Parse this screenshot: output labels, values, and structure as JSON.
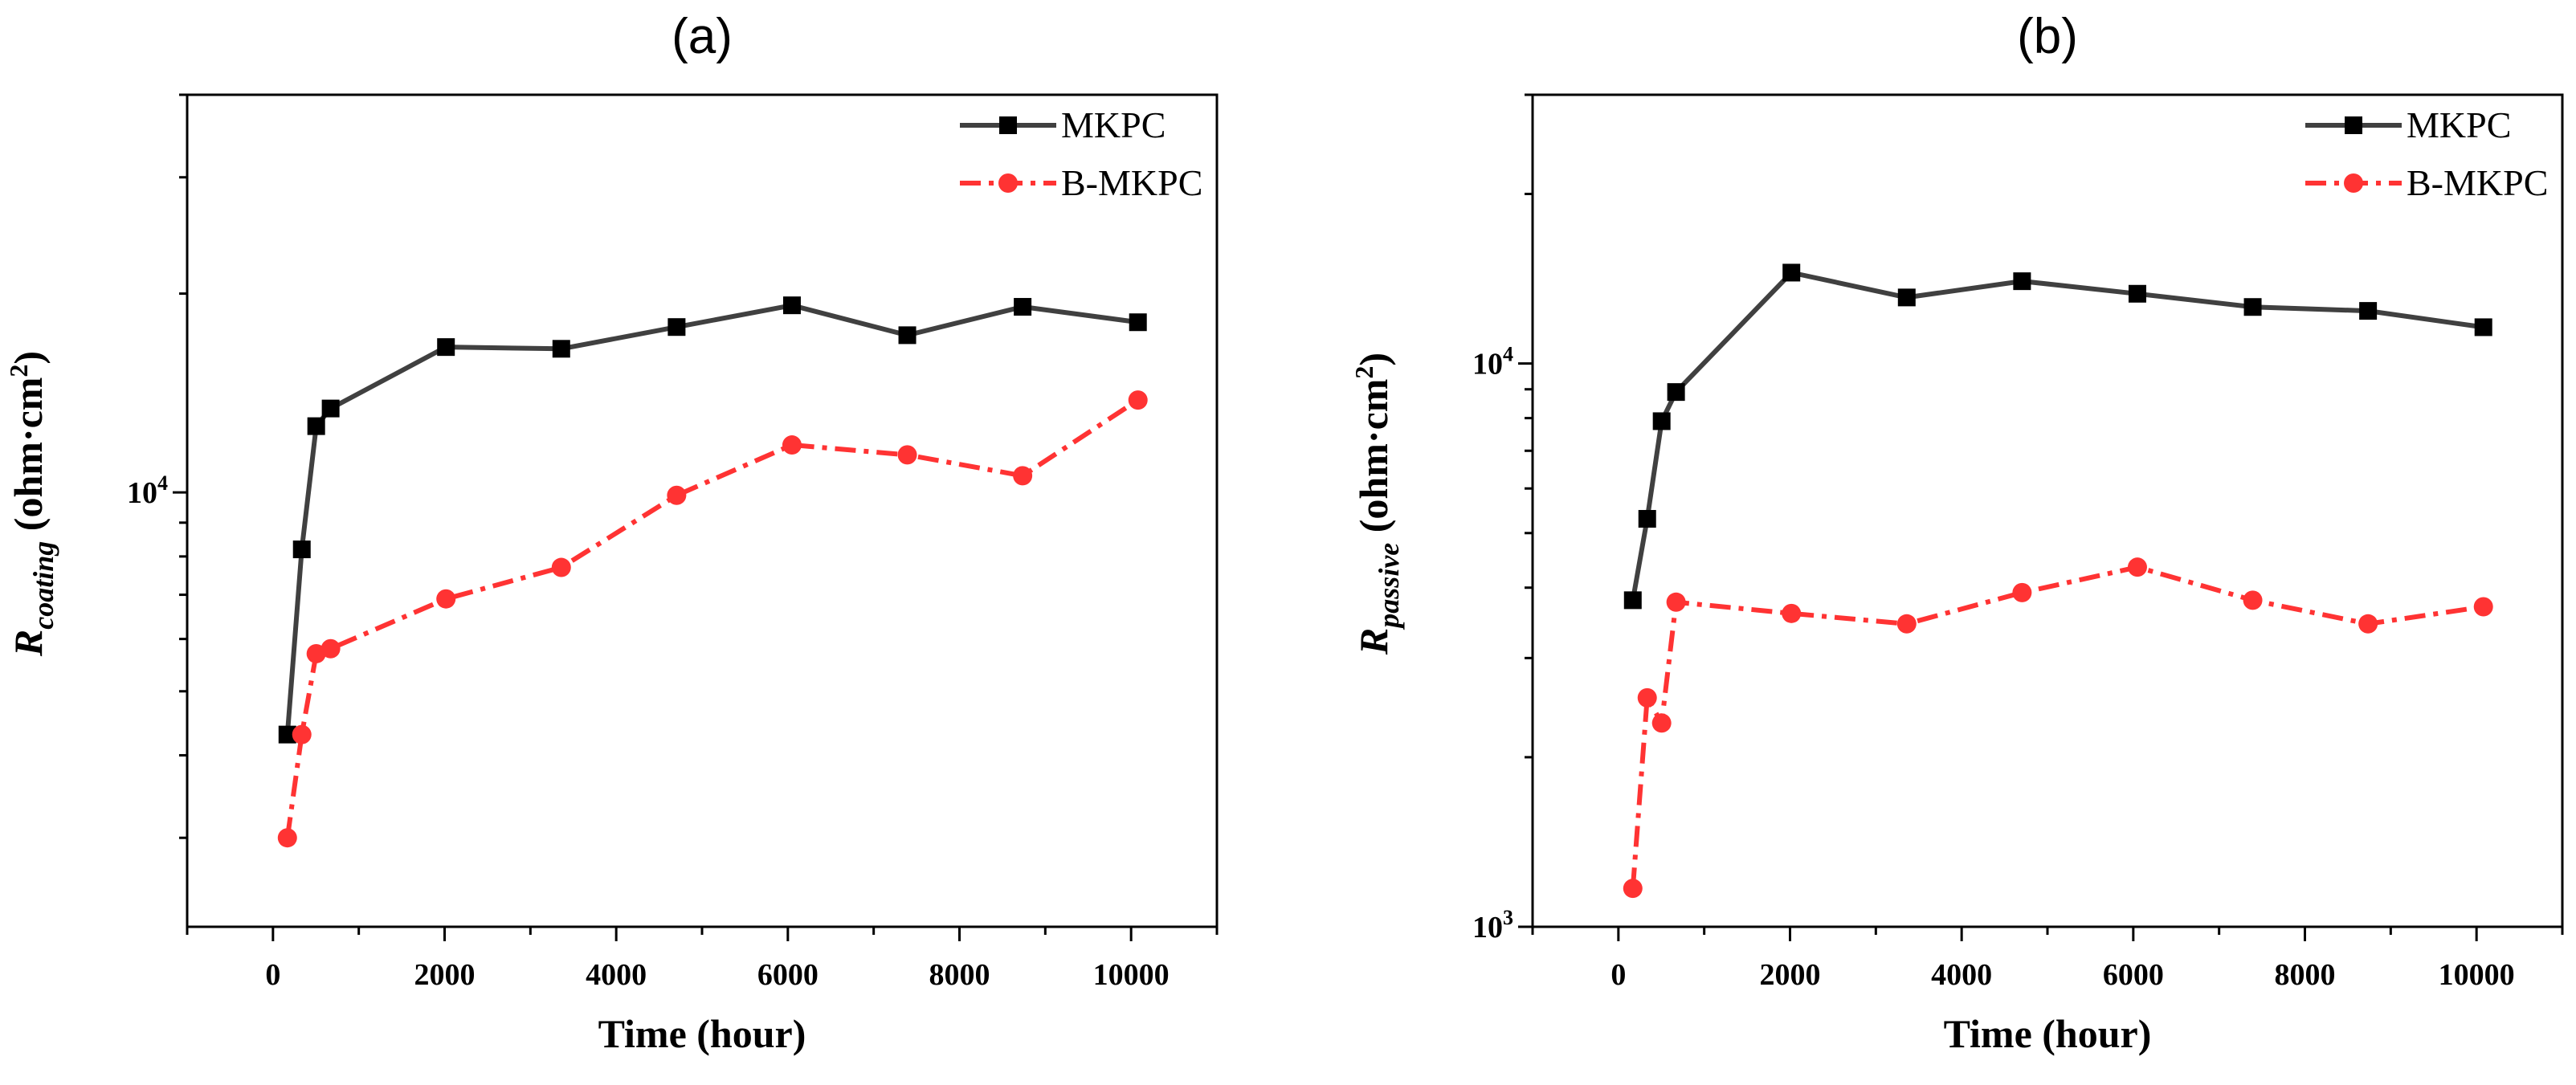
{
  "chart_data": [
    {
      "type": "line",
      "title": "(a)",
      "xlabel": "Time (hour)",
      "ylabel": {
        "base": "R",
        "sub": "coating",
        "rest": " (ohm·cm",
        "sup": "2",
        "close": ")"
      },
      "xlim": [
        -1000,
        11000
      ],
      "ylim": [
        2200,
        40000
      ],
      "yscale": "log",
      "x_ticks": [
        0,
        2000,
        4000,
        6000,
        8000,
        10000
      ],
      "x_tick_labels": [
        "0",
        "2000",
        "4000",
        "6000",
        "8000",
        "10000"
      ],
      "y_labeled_ticks": [
        {
          "value": 10000,
          "base": "10",
          "exp": "4"
        }
      ],
      "legend_position": "top-right",
      "series": [
        {
          "name": "MKPC",
          "color": "#404040",
          "marker": "square",
          "line_style": "solid",
          "x": [
            168,
            336,
            504,
            672,
            2016,
            3360,
            4704,
            6048,
            7392,
            8736,
            10080
          ],
          "y": [
            4300,
            8200,
            12600,
            13400,
            16600,
            16500,
            17800,
            19200,
            17300,
            19100,
            18100
          ]
        },
        {
          "name": "B-MKPC",
          "color": "#ff3333",
          "marker": "circle",
          "line_style": "dash-dot",
          "x": [
            168,
            336,
            504,
            672,
            2016,
            3360,
            4704,
            6048,
            7392,
            8736,
            10080
          ],
          "y": [
            3000,
            4300,
            5700,
            5800,
            6900,
            7700,
            9900,
            11800,
            11400,
            10600,
            13800
          ]
        }
      ]
    },
    {
      "type": "line",
      "title": "(b)",
      "xlabel": "Time (hour)",
      "ylabel": {
        "base": "R",
        "sub": "passive",
        "rest": " (ohm·cm",
        "sup": "2",
        "close": ")"
      },
      "xlim": [
        -1000,
        11000
      ],
      "ylim": [
        1000,
        30000
      ],
      "yscale": "log",
      "x_ticks": [
        0,
        2000,
        4000,
        6000,
        8000,
        10000
      ],
      "x_tick_labels": [
        "0",
        "2000",
        "4000",
        "6000",
        "8000",
        "10000"
      ],
      "y_labeled_ticks": [
        {
          "value": 1000,
          "base": "10",
          "exp": "3"
        },
        {
          "value": 10000,
          "base": "10",
          "exp": "4"
        }
      ],
      "legend_position": "top-right",
      "series": [
        {
          "name": "MKPC",
          "color": "#404040",
          "marker": "square",
          "line_style": "solid",
          "x": [
            168,
            336,
            504,
            672,
            2016,
            3360,
            4704,
            6048,
            7392,
            8736,
            10080
          ],
          "y": [
            3800,
            5300,
            7900,
            8900,
            14500,
            13100,
            14000,
            13300,
            12600,
            12400,
            11600
          ]
        },
        {
          "name": "B-MKPC",
          "color": "#ff3333",
          "marker": "circle",
          "line_style": "dash-dot",
          "x": [
            168,
            336,
            504,
            672,
            2016,
            3360,
            4704,
            6048,
            7392,
            8736,
            10080
          ],
          "y": [
            1170,
            2550,
            2300,
            3770,
            3600,
            3450,
            3920,
            4350,
            3800,
            3450,
            3700
          ]
        }
      ]
    }
  ]
}
